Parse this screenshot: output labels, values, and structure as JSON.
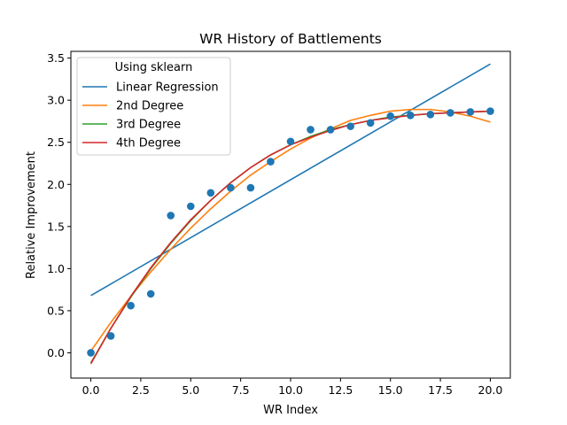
{
  "chart_data": {
    "type": "scatter",
    "title": "WR History of Battlements",
    "xlabel": "WR Index",
    "ylabel": "Relative Improvement",
    "xlim": [
      -1.0,
      21.0
    ],
    "ylim": [
      -0.3,
      3.58
    ],
    "grid": false,
    "x_ticks": [
      0.0,
      2.5,
      5.0,
      7.5,
      10.0,
      12.5,
      15.0,
      17.5,
      20.0
    ],
    "x_tick_labels": [
      "0.0",
      "2.5",
      "5.0",
      "7.5",
      "10.0",
      "12.5",
      "15.0",
      "17.5",
      "20.0"
    ],
    "y_ticks": [
      0.0,
      0.5,
      1.0,
      1.5,
      2.0,
      2.5,
      3.0,
      3.5
    ],
    "y_tick_labels": [
      "0.0",
      "0.5",
      "1.0",
      "1.5",
      "2.0",
      "2.5",
      "3.0",
      "3.5"
    ],
    "legend": {
      "title": "Using sklearn",
      "position": "upper left"
    },
    "points": {
      "color": "#1f77b4",
      "x": [
        0,
        1,
        2,
        3,
        4,
        5,
        6,
        7,
        8,
        9,
        10,
        11,
        12,
        13,
        14,
        15,
        16,
        17,
        18,
        19,
        20
      ],
      "y": [
        0.0,
        0.2,
        0.56,
        0.7,
        1.63,
        1.74,
        1.9,
        1.96,
        1.96,
        2.27,
        2.51,
        2.65,
        2.65,
        2.69,
        2.73,
        2.81,
        2.82,
        2.83,
        2.85,
        2.86,
        2.87
      ]
    },
    "series": [
      {
        "name": "Linear Regression",
        "color": "#1f77b4",
        "x": [
          0,
          20
        ],
        "y": [
          0.68,
          3.43
        ]
      },
      {
        "name": "2nd Degree",
        "color": "#ff7f0e",
        "x": [
          0,
          1,
          2,
          3,
          4,
          5,
          6,
          7,
          8,
          9,
          10,
          11,
          12,
          13,
          14,
          15,
          16,
          17,
          18,
          19,
          20
        ],
        "y": [
          0.02,
          0.36,
          0.67,
          0.96,
          1.23,
          1.48,
          1.71,
          1.92,
          2.11,
          2.27,
          2.42,
          2.55,
          2.66,
          2.76,
          2.82,
          2.87,
          2.89,
          2.89,
          2.86,
          2.81,
          2.74
        ]
      },
      {
        "name": "3rd Degree",
        "color": "#2ca02c",
        "x": [
          0,
          1,
          2,
          3,
          4,
          5,
          6,
          7,
          8,
          9,
          10,
          11,
          12,
          13,
          14,
          15,
          16,
          17,
          18,
          19,
          20
        ],
        "y": [
          -0.12,
          0.29,
          0.66,
          1.0,
          1.3,
          1.57,
          1.81,
          2.02,
          2.2,
          2.35,
          2.47,
          2.57,
          2.65,
          2.71,
          2.76,
          2.8,
          2.82,
          2.84,
          2.85,
          2.86,
          2.87
        ]
      },
      {
        "name": "4th Degree",
        "color": "#d62728",
        "x": [
          0,
          1,
          2,
          3,
          4,
          5,
          6,
          7,
          8,
          9,
          10,
          11,
          12,
          13,
          14,
          15,
          16,
          17,
          18,
          19,
          20
        ],
        "y": [
          -0.13,
          0.29,
          0.67,
          1.01,
          1.31,
          1.58,
          1.81,
          2.02,
          2.2,
          2.35,
          2.47,
          2.56,
          2.64,
          2.71,
          2.76,
          2.79,
          2.82,
          2.84,
          2.85,
          2.86,
          2.87
        ]
      }
    ]
  }
}
